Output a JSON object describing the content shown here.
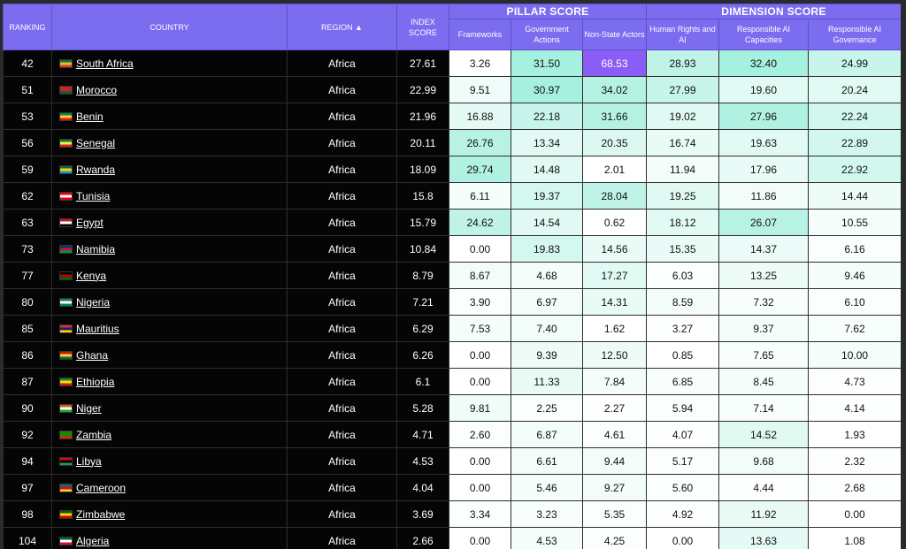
{
  "headers": {
    "ranking": "RANKING",
    "country": "COUNTRY",
    "region": "REGION ▲",
    "index_score": "INDEX SCORE",
    "pillar_group": "PILLAR SCORE",
    "dimension_group": "DIMENSION SCORE",
    "frameworks": "Frameworks",
    "government_actions": "Government Actions",
    "non_state_actors": "Non-State Actors",
    "human_rights": "Human Rights and AI",
    "responsible_capacities": "Responsible AI Capacities",
    "responsible_governance": "Responsible AI Governance"
  },
  "rows": [
    {
      "rank": "42",
      "country": "South Africa",
      "flag": [
        "#007a4d",
        "#ffb612",
        "#de3831"
      ],
      "region": "Africa",
      "index": "27.61",
      "scores": [
        "3.26",
        "31.50",
        "68.53",
        "28.93",
        "32.40",
        "24.99"
      ],
      "bg": [
        "#ffffff",
        "#a6f0e0",
        "#8b5cf6",
        "#c0f3e8",
        "#a6f0e0",
        "#c8f5eb"
      ]
    },
    {
      "rank": "51",
      "country": "Morocco",
      "flag": [
        "#c1272d",
        "#c1272d",
        "#006233"
      ],
      "region": "Africa",
      "index": "22.99",
      "scores": [
        "9.51",
        "30.97",
        "34.02",
        "27.99",
        "19.60",
        "20.24"
      ],
      "bg": [
        "#f0fcf9",
        "#a6f0e0",
        "#b5f2e4",
        "#c8f5eb",
        "#e2faf4",
        "#e2faf4"
      ]
    },
    {
      "rank": "53",
      "country": "Benin",
      "flag": [
        "#008751",
        "#fcd116",
        "#e8112d"
      ],
      "region": "Africa",
      "index": "21.96",
      "scores": [
        "16.88",
        "22.18",
        "31.66",
        "19.02",
        "27.96",
        "22.24"
      ],
      "bg": [
        "#e5faf5",
        "#c8f5eb",
        "#b5f2e4",
        "#e0f9f3",
        "#b0f1e2",
        "#d2f7ee"
      ]
    },
    {
      "rank": "56",
      "country": "Senegal",
      "flag": [
        "#00853f",
        "#fdef42",
        "#e31b23"
      ],
      "region": "Africa",
      "index": "20.11",
      "scores": [
        "26.76",
        "13.34",
        "20.35",
        "16.74",
        "19.63",
        "22.89"
      ],
      "bg": [
        "#b8f2e5",
        "#e3faf4",
        "#dcf8f1",
        "#e8fbf6",
        "#e2faf4",
        "#d2f7ee"
      ]
    },
    {
      "rank": "59",
      "country": "Rwanda",
      "flag": [
        "#20603d",
        "#fad201",
        "#00a1de"
      ],
      "region": "Africa",
      "index": "18.09",
      "scores": [
        "29.74",
        "14.48",
        "2.01",
        "11.94",
        "17.96",
        "22.92"
      ],
      "bg": [
        "#b0f1e2",
        "#e0f9f3",
        "#ffffff",
        "#f2fcf9",
        "#e8fbf6",
        "#d2f7ee"
      ]
    },
    {
      "rank": "62",
      "country": "Tunisia",
      "flag": [
        "#e70013",
        "#ffffff",
        "#e70013"
      ],
      "region": "Africa",
      "index": "15.8",
      "scores": [
        "6.11",
        "19.37",
        "28.04",
        "19.25",
        "11.86",
        "14.44"
      ],
      "bg": [
        "#f5fdfb",
        "#d4f7ef",
        "#bff3e7",
        "#e0f9f3",
        "#f2fcf9",
        "#eefcf8"
      ]
    },
    {
      "rank": "63",
      "country": "Egypt",
      "flag": [
        "#ce1126",
        "#ffffff",
        "#000000"
      ],
      "region": "Africa",
      "index": "15.79",
      "scores": [
        "24.62",
        "14.54",
        "0.62",
        "18.12",
        "26.07",
        "10.55"
      ],
      "bg": [
        "#c0f3e8",
        "#e0f9f3",
        "#ffffff",
        "#e2faf4",
        "#b8f2e5",
        "#f5fdfb"
      ]
    },
    {
      "rank": "73",
      "country": "Namibia",
      "flag": [
        "#003580",
        "#d21034",
        "#009543"
      ],
      "region": "Africa",
      "index": "10.84",
      "scores": [
        "0.00",
        "19.83",
        "14.56",
        "15.35",
        "14.37",
        "6.16"
      ],
      "bg": [
        "#ffffff",
        "#d4f7ef",
        "#e8fbf6",
        "#eafbf7",
        "#ebfbf7",
        "#fafefd"
      ]
    },
    {
      "rank": "77",
      "country": "Kenya",
      "flag": [
        "#000000",
        "#bb0000",
        "#006600"
      ],
      "region": "Africa",
      "index": "8.79",
      "scores": [
        "8.67",
        "4.68",
        "17.27",
        "6.03",
        "13.25",
        "9.46"
      ],
      "bg": [
        "#f2fcf9",
        "#f5fdfb",
        "#e2faf4",
        "#fafefd",
        "#eefcf8",
        "#f5fdfb"
      ]
    },
    {
      "rank": "80",
      "country": "Nigeria",
      "flag": [
        "#008751",
        "#ffffff",
        "#008751"
      ],
      "region": "Africa",
      "index": "7.21",
      "scores": [
        "3.90",
        "6.97",
        "14.31",
        "8.59",
        "7.32",
        "6.10"
      ],
      "bg": [
        "#fafefd",
        "#f2fcf9",
        "#e8fbf6",
        "#f5fdfb",
        "#f8fefc",
        "#fafefd"
      ]
    },
    {
      "rank": "85",
      "country": "Mauritius",
      "flag": [
        "#ea2839",
        "#1a206d",
        "#ffd500"
      ],
      "region": "Africa",
      "index": "6.29",
      "scores": [
        "7.53",
        "7.40",
        "1.62",
        "3.27",
        "9.37",
        "7.62"
      ],
      "bg": [
        "#f5fdfb",
        "#f2fcf9",
        "#ffffff",
        "#fdfffe",
        "#f5fdfb",
        "#f8fefc"
      ]
    },
    {
      "rank": "86",
      "country": "Ghana",
      "flag": [
        "#ce1126",
        "#fcd116",
        "#006b3f"
      ],
      "region": "Africa",
      "index": "6.26",
      "scores": [
        "0.00",
        "9.39",
        "12.50",
        "0.85",
        "7.65",
        "10.00"
      ],
      "bg": [
        "#ffffff",
        "#eefcf8",
        "#eefcf8",
        "#ffffff",
        "#f8fefc",
        "#f5fdfb"
      ]
    },
    {
      "rank": "87",
      "country": "Ethiopia",
      "flag": [
        "#078930",
        "#fcdd09",
        "#da121a"
      ],
      "region": "Africa",
      "index": "6.1",
      "scores": [
        "0.00",
        "11.33",
        "7.84",
        "6.85",
        "8.45",
        "4.73"
      ],
      "bg": [
        "#ffffff",
        "#eafbf7",
        "#f5fdfb",
        "#f8fefc",
        "#f5fdfb",
        "#fdfffe"
      ]
    },
    {
      "rank": "90",
      "country": "Niger",
      "flag": [
        "#e05206",
        "#ffffff",
        "#0db02b"
      ],
      "region": "Africa",
      "index": "5.28",
      "scores": [
        "9.81",
        "2.25",
        "2.27",
        "5.94",
        "7.14",
        "4.14"
      ],
      "bg": [
        "#f0fcf9",
        "#fafefd",
        "#fdfffe",
        "#fafefd",
        "#f8fefc",
        "#fdfffe"
      ]
    },
    {
      "rank": "92",
      "country": "Zambia",
      "flag": [
        "#198a00",
        "#198a00",
        "#de2010"
      ],
      "region": "Africa",
      "index": "4.71",
      "scores": [
        "2.60",
        "6.87",
        "4.61",
        "4.07",
        "14.52",
        "1.93"
      ],
      "bg": [
        "#fafefd",
        "#f2fcf9",
        "#fafefd",
        "#fdfffe",
        "#e0f9f3",
        "#ffffff"
      ]
    },
    {
      "rank": "94",
      "country": "Libya",
      "flag": [
        "#e70013",
        "#000000",
        "#239e46"
      ],
      "region": "Africa",
      "index": "4.53",
      "scores": [
        "0.00",
        "6.61",
        "9.44",
        "5.17",
        "9.68",
        "2.32"
      ],
      "bg": [
        "#ffffff",
        "#f2fcf9",
        "#f2fcf9",
        "#fafefd",
        "#f2fcf9",
        "#fdfffe"
      ]
    },
    {
      "rank": "97",
      "country": "Cameroon",
      "flag": [
        "#007a5e",
        "#ce1126",
        "#fcd116"
      ],
      "region": "Africa",
      "index": "4.04",
      "scores": [
        "0.00",
        "5.46",
        "9.27",
        "5.60",
        "4.44",
        "2.68"
      ],
      "bg": [
        "#ffffff",
        "#f5fdfb",
        "#f2fcf9",
        "#fafefd",
        "#fdfffe",
        "#fdfffe"
      ]
    },
    {
      "rank": "98",
      "country": "Zimbabwe",
      "flag": [
        "#006400",
        "#ffd200",
        "#d40000"
      ],
      "region": "Africa",
      "index": "3.69",
      "scores": [
        "3.34",
        "3.23",
        "5.35",
        "4.92",
        "11.92",
        "0.00"
      ],
      "bg": [
        "#fafefd",
        "#f8fefc",
        "#fafefd",
        "#fdfffe",
        "#eafbf7",
        "#ffffff"
      ]
    },
    {
      "rank": "104",
      "country": "Algeria",
      "flag": [
        "#006233",
        "#ffffff",
        "#d21034"
      ],
      "region": "Africa",
      "index": "2.66",
      "scores": [
        "0.00",
        "4.53",
        "4.25",
        "0.00",
        "13.63",
        "1.08"
      ],
      "bg": [
        "#ffffff",
        "#f5fdfb",
        "#fafefd",
        "#ffffff",
        "#e5faf5",
        "#ffffff"
      ]
    }
  ]
}
